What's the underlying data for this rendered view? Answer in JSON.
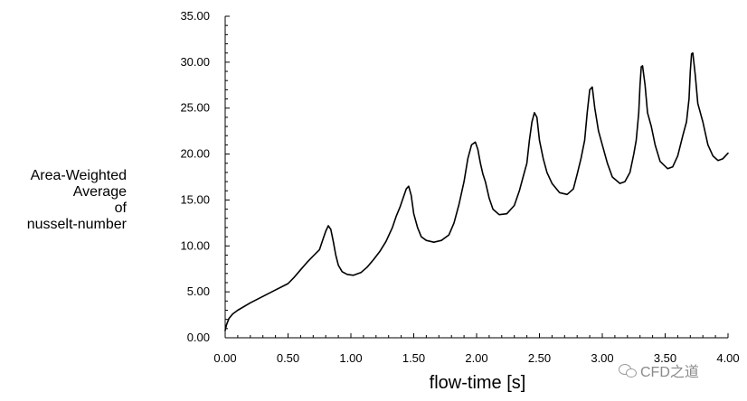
{
  "chart_data": {
    "type": "line",
    "title": "",
    "xlabel": "flow-time [s]",
    "ylabel_lines": [
      "Area-Weighted",
      "Average",
      "of",
      "nusselt-number"
    ],
    "xlim": [
      0,
      4
    ],
    "ylim": [
      0,
      35
    ],
    "xticks": [
      "0.00",
      "0.50",
      "1.00",
      "1.50",
      "2.00",
      "2.50",
      "3.00",
      "3.50",
      "4.00"
    ],
    "yticks": [
      "0.00",
      "5.00",
      "10.00",
      "15.00",
      "20.00",
      "25.00",
      "30.00",
      "35.00"
    ],
    "grid": false,
    "series": [
      {
        "name": "",
        "color": "#000000",
        "x": [
          0.0,
          0.01,
          0.03,
          0.06,
          0.1,
          0.2,
          0.3,
          0.4,
          0.5,
          0.55,
          0.6,
          0.65,
          0.7,
          0.75,
          0.78,
          0.8,
          0.82,
          0.84,
          0.86,
          0.88,
          0.9,
          0.93,
          0.97,
          1.02,
          1.08,
          1.13,
          1.18,
          1.23,
          1.28,
          1.33,
          1.36,
          1.39,
          1.42,
          1.44,
          1.46,
          1.48,
          1.5,
          1.53,
          1.56,
          1.6,
          1.66,
          1.72,
          1.78,
          1.82,
          1.86,
          1.9,
          1.93,
          1.96,
          1.99,
          2.01,
          2.03,
          2.05,
          2.07,
          2.1,
          2.13,
          2.18,
          2.24,
          2.3,
          2.34,
          2.37,
          2.4,
          2.42,
          2.44,
          2.46,
          2.48,
          2.5,
          2.53,
          2.56,
          2.6,
          2.66,
          2.72,
          2.77,
          2.8,
          2.83,
          2.86,
          2.88,
          2.9,
          2.92,
          2.94,
          2.97,
          3.0,
          3.04,
          3.08,
          3.14,
          3.18,
          3.22,
          3.25,
          3.27,
          3.29,
          3.3,
          3.31,
          3.32,
          3.34,
          3.36,
          3.39,
          3.42,
          3.46,
          3.52,
          3.56,
          3.6,
          3.64,
          3.67,
          3.69,
          3.7,
          3.71,
          3.72,
          3.74,
          3.76,
          3.8,
          3.84,
          3.88,
          3.92,
          3.96,
          4.0
        ],
        "y": [
          0.8,
          1.4,
          2.1,
          2.6,
          3.0,
          3.8,
          4.5,
          5.2,
          5.9,
          6.6,
          7.4,
          8.2,
          8.9,
          9.6,
          10.8,
          11.6,
          12.2,
          11.8,
          10.5,
          9.0,
          7.9,
          7.2,
          6.9,
          6.8,
          7.1,
          7.7,
          8.5,
          9.4,
          10.5,
          12.0,
          13.2,
          14.2,
          15.4,
          16.2,
          16.5,
          15.5,
          13.5,
          12.0,
          11.0,
          10.6,
          10.4,
          10.6,
          11.2,
          12.5,
          14.5,
          17.0,
          19.5,
          21.0,
          21.3,
          20.5,
          19.0,
          17.8,
          17.0,
          15.2,
          14.0,
          13.4,
          13.5,
          14.4,
          16.0,
          17.5,
          19.0,
          21.5,
          23.5,
          24.5,
          24.0,
          21.5,
          19.5,
          18.0,
          16.8,
          15.8,
          15.6,
          16.2,
          17.8,
          19.5,
          21.5,
          24.5,
          27.0,
          27.3,
          25.0,
          22.5,
          21.0,
          19.0,
          17.5,
          16.8,
          17.0,
          18.0,
          20.0,
          21.5,
          24.5,
          27.5,
          29.5,
          29.6,
          27.5,
          24.5,
          23.0,
          21.0,
          19.2,
          18.4,
          18.6,
          19.8,
          22.0,
          23.5,
          26.0,
          29.0,
          30.9,
          31.0,
          28.5,
          25.5,
          23.5,
          21.0,
          19.8,
          19.3,
          19.5,
          20.1
        ]
      }
    ]
  },
  "watermark": {
    "text": "CFD之道",
    "icon": "wechat-icon"
  }
}
